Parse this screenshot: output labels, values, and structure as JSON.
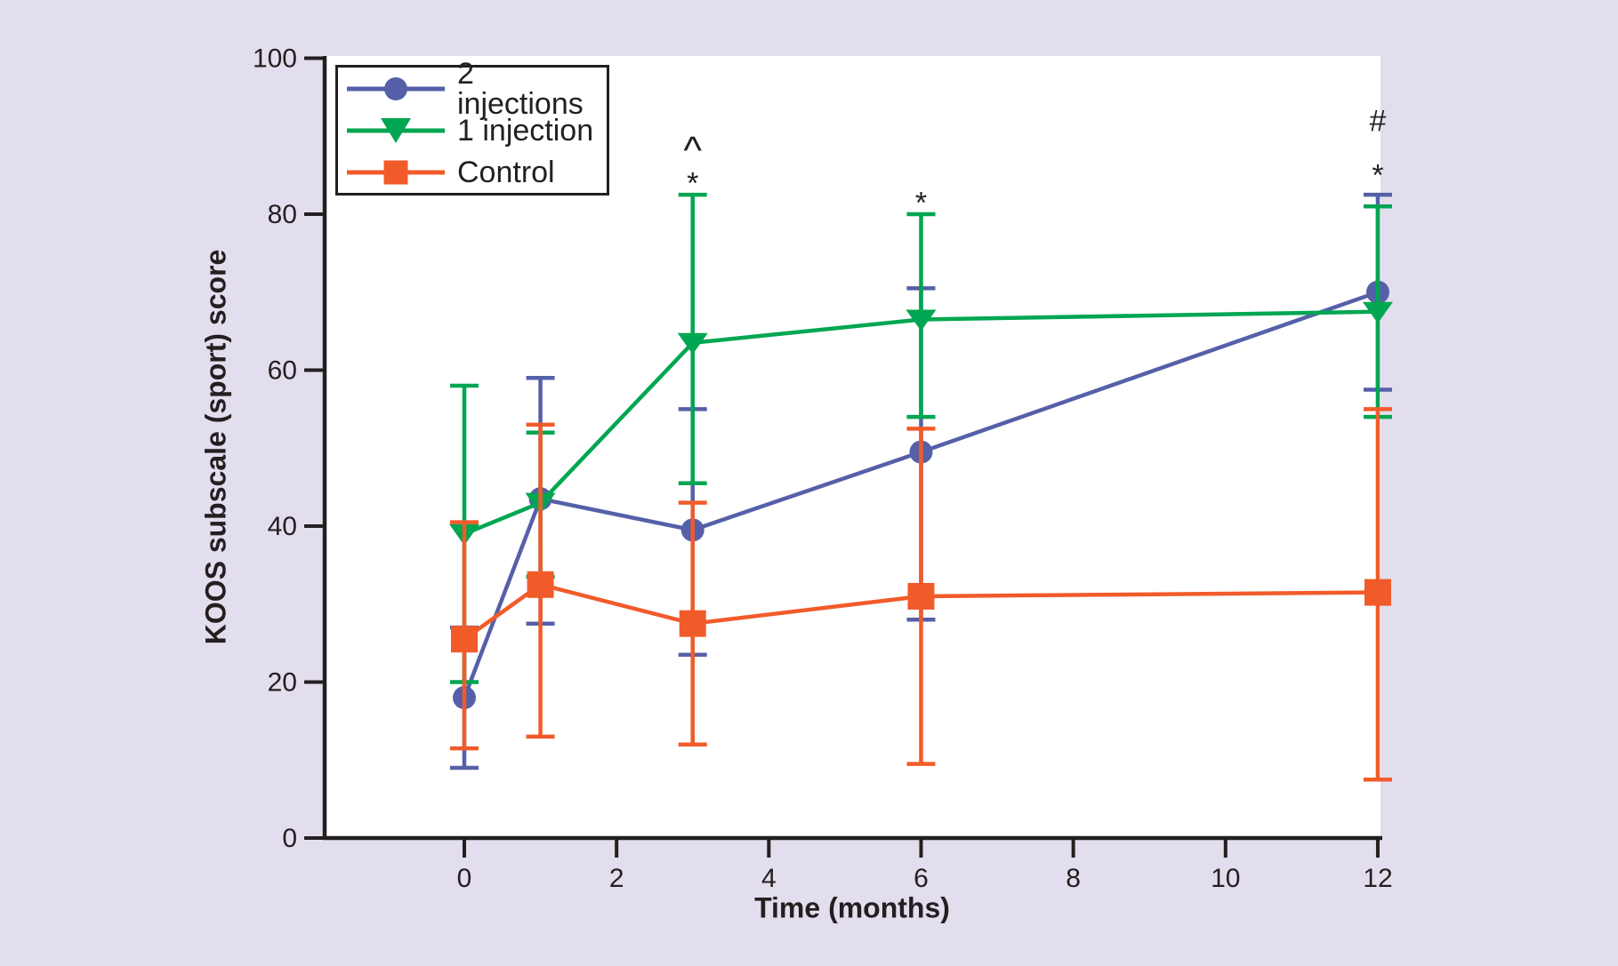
{
  "figure": {
    "background_color": "#E3DEED",
    "plot_background_color": "#FFFFFF",
    "axis_color": "#231F20",
    "text_color": "#231F20"
  },
  "chart_data": {
    "type": "line",
    "title": "",
    "xlabel": "Time (months)",
    "ylabel": "KOOS subscale (sport) score",
    "x": [
      0,
      1,
      3,
      6,
      12
    ],
    "x_ticks": [
      0,
      2,
      4,
      6,
      8,
      10,
      12
    ],
    "y_ticks": [
      0,
      20,
      40,
      60,
      80,
      100
    ],
    "xlim": [
      -1.84,
      12.04
    ],
    "ylim": [
      0,
      100
    ],
    "grid": false,
    "legend_position": "top-left",
    "error_bars": true,
    "series": [
      {
        "name": "2 injections",
        "color": "#5560A8",
        "marker": "circle",
        "values": [
          18,
          43.5,
          39.5,
          49.5,
          70
        ],
        "err_low": [
          9,
          27.5,
          23.5,
          28,
          57.5
        ],
        "err_high": [
          27,
          59,
          55,
          70.5,
          82.5
        ]
      },
      {
        "name": "1 injection",
        "color": "#00A651",
        "marker": "triangle-down",
        "values": [
          39,
          43,
          63.5,
          66.5,
          67.5
        ],
        "err_low": [
          20,
          33.5,
          45.5,
          54,
          54
        ],
        "err_high": [
          58,
          52,
          82.5,
          80,
          81
        ]
      },
      {
        "name": "Control",
        "color": "#F15B2A",
        "marker": "square",
        "values": [
          25.5,
          32.5,
          27.5,
          31,
          31.5
        ],
        "err_low": [
          11.5,
          13,
          12,
          9.5,
          7.5
        ],
        "err_high": [
          40.5,
          53,
          43,
          52.5,
          55
        ]
      }
    ],
    "annotations": [
      {
        "x": 3,
        "y": 89,
        "text": "^"
      },
      {
        "x": 3,
        "y": 84.5,
        "text": "*"
      },
      {
        "x": 6,
        "y": 82,
        "text": "*"
      },
      {
        "x": 12,
        "y": 92,
        "text": "#"
      },
      {
        "x": 12,
        "y": 85.5,
        "text": "*"
      }
    ]
  },
  "legend": {
    "entries": [
      {
        "label": "2 injections",
        "marker": "circle"
      },
      {
        "label": "1 injection",
        "marker": "triangle-down"
      },
      {
        "label": "Control",
        "marker": "square"
      }
    ]
  }
}
